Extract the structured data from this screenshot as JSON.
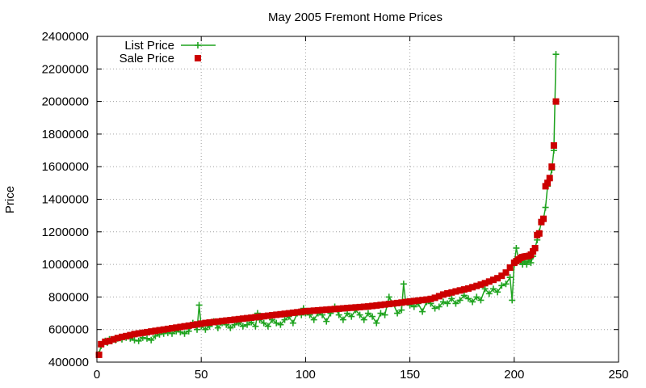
{
  "chart_data": {
    "type": "line",
    "title": "May 2005 Fremont Home Prices",
    "xlabel": "",
    "ylabel": "Price",
    "xlim": [
      0,
      250
    ],
    "ylim": [
      400000,
      2400000
    ],
    "xticks": [
      0,
      50,
      100,
      150,
      200,
      250
    ],
    "yticks": [
      400000,
      600000,
      800000,
      1000000,
      1200000,
      1400000,
      1600000,
      1800000,
      2000000,
      2200000,
      2400000
    ],
    "grid": true,
    "legend": "top-left",
    "colors": {
      "list": "#1fa31f",
      "sale": "#cc0000"
    },
    "series": [
      {
        "name": "List Price",
        "style": "line-plus",
        "color": "#1fa31f",
        "points": [
          [
            1,
            450000
          ],
          [
            2,
            500000
          ],
          [
            3,
            520000
          ],
          [
            4,
            530000
          ],
          [
            5,
            520000
          ],
          [
            6,
            540000
          ],
          [
            7,
            530000
          ],
          [
            8,
            540000
          ],
          [
            9,
            535000
          ],
          [
            10,
            545000
          ],
          [
            12,
            540000
          ],
          [
            14,
            550000
          ],
          [
            16,
            545000
          ],
          [
            18,
            535000
          ],
          [
            20,
            530000
          ],
          [
            22,
            550000
          ],
          [
            24,
            545000
          ],
          [
            26,
            535000
          ],
          [
            28,
            560000
          ],
          [
            30,
            570000
          ],
          [
            32,
            575000
          ],
          [
            34,
            580000
          ],
          [
            36,
            575000
          ],
          [
            38,
            590000
          ],
          [
            40,
            585000
          ],
          [
            42,
            575000
          ],
          [
            44,
            590000
          ],
          [
            46,
            640000
          ],
          [
            48,
            600000
          ],
          [
            49,
            750000
          ],
          [
            50,
            620000
          ],
          [
            52,
            600000
          ],
          [
            54,
            620000
          ],
          [
            56,
            650000
          ],
          [
            58,
            610000
          ],
          [
            60,
            640000
          ],
          [
            62,
            630000
          ],
          [
            64,
            610000
          ],
          [
            66,
            630000
          ],
          [
            68,
            640000
          ],
          [
            70,
            620000
          ],
          [
            72,
            630000
          ],
          [
            74,
            645000
          ],
          [
            76,
            620000
          ],
          [
            77,
            700000
          ],
          [
            78,
            660000
          ],
          [
            80,
            640000
          ],
          [
            82,
            620000
          ],
          [
            84,
            660000
          ],
          [
            86,
            640000
          ],
          [
            88,
            630000
          ],
          [
            90,
            660000
          ],
          [
            92,
            680000
          ],
          [
            94,
            640000
          ],
          [
            96,
            700000
          ],
          [
            98,
            690000
          ],
          [
            99,
            730000
          ],
          [
            100,
            700000
          ],
          [
            102,
            690000
          ],
          [
            104,
            660000
          ],
          [
            106,
            700000
          ],
          [
            108,
            690000
          ],
          [
            110,
            650000
          ],
          [
            112,
            700000
          ],
          [
            114,
            740000
          ],
          [
            116,
            690000
          ],
          [
            118,
            660000
          ],
          [
            120,
            700000
          ],
          [
            122,
            680000
          ],
          [
            124,
            720000
          ],
          [
            126,
            690000
          ],
          [
            128,
            660000
          ],
          [
            130,
            700000
          ],
          [
            132,
            680000
          ],
          [
            134,
            640000
          ],
          [
            136,
            700000
          ],
          [
            138,
            690000
          ],
          [
            140,
            800000
          ],
          [
            142,
            760000
          ],
          [
            144,
            700000
          ],
          [
            146,
            720000
          ],
          [
            147,
            880000
          ],
          [
            148,
            770000
          ],
          [
            150,
            750000
          ],
          [
            152,
            740000
          ],
          [
            154,
            760000
          ],
          [
            156,
            710000
          ],
          [
            158,
            770000
          ],
          [
            160,
            760000
          ],
          [
            162,
            730000
          ],
          [
            164,
            740000
          ],
          [
            166,
            770000
          ],
          [
            168,
            760000
          ],
          [
            170,
            790000
          ],
          [
            172,
            760000
          ],
          [
            174,
            780000
          ],
          [
            176,
            810000
          ],
          [
            178,
            790000
          ],
          [
            180,
            770000
          ],
          [
            182,
            800000
          ],
          [
            184,
            780000
          ],
          [
            186,
            850000
          ],
          [
            188,
            820000
          ],
          [
            190,
            850000
          ],
          [
            192,
            830000
          ],
          [
            194,
            870000
          ],
          [
            196,
            880000
          ],
          [
            198,
            920000
          ],
          [
            199,
            780000
          ],
          [
            200,
            1000000
          ],
          [
            201,
            1100000
          ],
          [
            202,
            1040000
          ],
          [
            203,
            1020000
          ],
          [
            204,
            1000000
          ],
          [
            205,
            1020000
          ],
          [
            206,
            1000000
          ],
          [
            207,
            1030000
          ],
          [
            208,
            1010000
          ],
          [
            209,
            1050000
          ],
          [
            210,
            1100000
          ],
          [
            211,
            1150000
          ],
          [
            212,
            1200000
          ],
          [
            213,
            1260000
          ],
          [
            214,
            1280000
          ],
          [
            215,
            1350000
          ],
          [
            216,
            1480000
          ],
          [
            217,
            1520000
          ],
          [
            218,
            1580000
          ],
          [
            219,
            1700000
          ],
          [
            220,
            2290000
          ]
        ]
      },
      {
        "name": "Sale Price",
        "style": "square",
        "color": "#cc0000",
        "points": [
          [
            1,
            445000
          ],
          [
            2,
            510000
          ],
          [
            4,
            525000
          ],
          [
            6,
            530000
          ],
          [
            8,
            540000
          ],
          [
            10,
            548000
          ],
          [
            12,
            555000
          ],
          [
            14,
            560000
          ],
          [
            16,
            566000
          ],
          [
            18,
            572000
          ],
          [
            20,
            576000
          ],
          [
            22,
            580000
          ],
          [
            24,
            584000
          ],
          [
            26,
            588000
          ],
          [
            28,
            592000
          ],
          [
            30,
            596000
          ],
          [
            32,
            600000
          ],
          [
            34,
            604000
          ],
          [
            36,
            608000
          ],
          [
            38,
            612000
          ],
          [
            40,
            616000
          ],
          [
            42,
            620000
          ],
          [
            44,
            624000
          ],
          [
            46,
            628000
          ],
          [
            48,
            632000
          ],
          [
            50,
            636000
          ],
          [
            52,
            640000
          ],
          [
            54,
            643000
          ],
          [
            56,
            646000
          ],
          [
            58,
            649000
          ],
          [
            60,
            652000
          ],
          [
            62,
            655000
          ],
          [
            64,
            658000
          ],
          [
            66,
            661000
          ],
          [
            68,
            664000
          ],
          [
            70,
            667000
          ],
          [
            72,
            670000
          ],
          [
            74,
            673000
          ],
          [
            76,
            676000
          ],
          [
            78,
            679000
          ],
          [
            80,
            682000
          ],
          [
            82,
            685000
          ],
          [
            84,
            688000
          ],
          [
            86,
            691000
          ],
          [
            88,
            694000
          ],
          [
            90,
            697000
          ],
          [
            92,
            700000
          ],
          [
            94,
            703000
          ],
          [
            96,
            706000
          ],
          [
            98,
            709000
          ],
          [
            100,
            712000
          ],
          [
            102,
            714000
          ],
          [
            104,
            716000
          ],
          [
            106,
            718000
          ],
          [
            108,
            720000
          ],
          [
            110,
            722000
          ],
          [
            112,
            724000
          ],
          [
            114,
            726000
          ],
          [
            116,
            728000
          ],
          [
            118,
            730000
          ],
          [
            120,
            732000
          ],
          [
            122,
            734000
          ],
          [
            124,
            736000
          ],
          [
            126,
            738000
          ],
          [
            128,
            740000
          ],
          [
            130,
            742000
          ],
          [
            132,
            745000
          ],
          [
            134,
            748000
          ],
          [
            136,
            751000
          ],
          [
            138,
            754000
          ],
          [
            140,
            757000
          ],
          [
            142,
            760000
          ],
          [
            144,
            763000
          ],
          [
            146,
            766000
          ],
          [
            148,
            769000
          ],
          [
            150,
            772000
          ],
          [
            152,
            775000
          ],
          [
            154,
            778000
          ],
          [
            156,
            781000
          ],
          [
            158,
            784000
          ],
          [
            160,
            788000
          ],
          [
            162,
            795000
          ],
          [
            164,
            805000
          ],
          [
            166,
            815000
          ],
          [
            168,
            822000
          ],
          [
            170,
            828000
          ],
          [
            172,
            834000
          ],
          [
            174,
            840000
          ],
          [
            176,
            846000
          ],
          [
            178,
            852000
          ],
          [
            180,
            860000
          ],
          [
            182,
            868000
          ],
          [
            184,
            876000
          ],
          [
            186,
            885000
          ],
          [
            188,
            895000
          ],
          [
            190,
            905000
          ],
          [
            192,
            915000
          ],
          [
            194,
            930000
          ],
          [
            196,
            950000
          ],
          [
            198,
            980000
          ],
          [
            200,
            1010000
          ],
          [
            201,
            1020000
          ],
          [
            202,
            1030000
          ],
          [
            203,
            1040000
          ],
          [
            204,
            1045000
          ],
          [
            205,
            1048000
          ],
          [
            206,
            1050000
          ],
          [
            207,
            1052000
          ],
          [
            208,
            1060000
          ],
          [
            209,
            1080000
          ],
          [
            210,
            1100000
          ],
          [
            211,
            1180000
          ],
          [
            212,
            1190000
          ],
          [
            213,
            1260000
          ],
          [
            214,
            1280000
          ],
          [
            215,
            1480000
          ],
          [
            216,
            1500000
          ],
          [
            217,
            1530000
          ],
          [
            218,
            1600000
          ],
          [
            219,
            1730000
          ],
          [
            220,
            2000000
          ]
        ]
      }
    ]
  }
}
